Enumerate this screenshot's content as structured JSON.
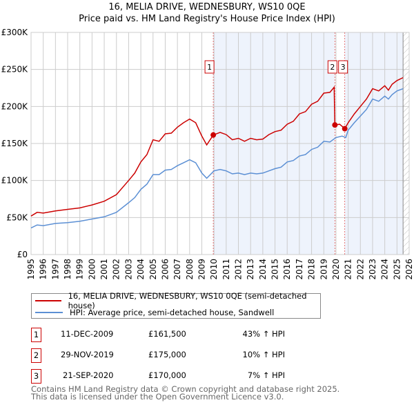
{
  "chart_data": {
    "type": "line",
    "title": "16, MELIA DRIVE, WEDNESBURY, WS10 0QE",
    "subtitle": "Price paid vs. HM Land Registry's House Price Index (HPI)",
    "xlabel": "",
    "ylabel": "",
    "xlim": [
      1995,
      2026
    ],
    "ylim": [
      0,
      300000
    ],
    "x_ticks": [
      "1995",
      "1996",
      "1997",
      "1998",
      "1999",
      "2000",
      "2001",
      "2002",
      "2003",
      "2004",
      "2005",
      "2006",
      "2007",
      "2008",
      "2009",
      "2010",
      "2011",
      "2012",
      "2013",
      "2014",
      "2015",
      "2016",
      "2017",
      "2018",
      "2019",
      "2020",
      "2021",
      "2022",
      "2023",
      "2024",
      "2025",
      "2026"
    ],
    "y_ticks": [
      {
        "v": 0,
        "label": "£0"
      },
      {
        "v": 50000,
        "label": "£50K"
      },
      {
        "v": 100000,
        "label": "£100K"
      },
      {
        "v": 150000,
        "label": "£150K"
      },
      {
        "v": 200000,
        "label": "£200K"
      },
      {
        "v": 250000,
        "label": "£250K"
      },
      {
        "v": 300000,
        "label": "£300K"
      }
    ],
    "grid": true,
    "series": [
      {
        "name": "16, MELIA DRIVE, WEDNESBURY, WS10 0QE (semi-detached house)",
        "color": "#cc0000",
        "x": [
          1995,
          1995.5,
          1996,
          1997,
          1998,
          1999,
          2000,
          2001,
          2002,
          2003,
          2003.5,
          2004,
          2004.5,
          2005,
          2005.5,
          2006,
          2006.5,
          2007,
          2007.5,
          2008,
          2008.5,
          2009,
          2009.4,
          2009.94,
          2010.5,
          2011,
          2011.5,
          2012,
          2012.5,
          2013,
          2013.5,
          2014,
          2014.5,
          2015,
          2015.5,
          2016,
          2016.5,
          2017,
          2017.5,
          2018,
          2018.5,
          2019,
          2019.5,
          2019.85,
          2019.91,
          2020.3,
          2020.72,
          2021,
          2021.5,
          2022,
          2022.5,
          2023,
          2023.5,
          2024,
          2024.3,
          2024.6,
          2025,
          2025.5
        ],
        "y": [
          52000,
          57000,
          56000,
          59000,
          61000,
          63000,
          67000,
          72000,
          81000,
          100000,
          110000,
          125000,
          135000,
          155000,
          153000,
          163000,
          164000,
          172000,
          178000,
          183000,
          178000,
          160000,
          148000,
          161500,
          165000,
          162000,
          155000,
          157000,
          153000,
          157000,
          155000,
          156000,
          162000,
          166000,
          168000,
          176000,
          180000,
          190000,
          193000,
          203000,
          207000,
          218000,
          219000,
          226000,
          175000,
          176000,
          170000,
          178000,
          190000,
          200000,
          210000,
          224000,
          221000,
          228000,
          222000,
          230000,
          235000,
          239000
        ]
      },
      {
        "name": "HPI: Average price, semi-detached house, Sandwell",
        "color": "#5b8fd4",
        "x": [
          1995,
          1995.5,
          1996,
          1997,
          1998,
          1999,
          2000,
          2001,
          2002,
          2003,
          2003.5,
          2004,
          2004.5,
          2005,
          2005.5,
          2006,
          2006.5,
          2007,
          2007.5,
          2008,
          2008.5,
          2009,
          2009.4,
          2010,
          2010.5,
          2011,
          2011.5,
          2012,
          2012.5,
          2013,
          2013.5,
          2014,
          2014.5,
          2015,
          2015.5,
          2016,
          2016.5,
          2017,
          2017.5,
          2018,
          2018.5,
          2019,
          2019.5,
          2020,
          2020.5,
          2020.8,
          2021,
          2021.5,
          2022,
          2022.5,
          2023,
          2023.5,
          2024,
          2024.3,
          2024.6,
          2025,
          2025.5
        ],
        "y": [
          36000,
          40000,
          39000,
          42000,
          43000,
          45000,
          48000,
          51000,
          57000,
          70000,
          77000,
          88000,
          95000,
          108000,
          108000,
          114000,
          115000,
          120000,
          124000,
          128000,
          124000,
          110000,
          103000,
          113000,
          115000,
          113000,
          109000,
          110000,
          108000,
          110000,
          109000,
          110000,
          113000,
          116000,
          118000,
          125000,
          127000,
          133000,
          135000,
          142000,
          145000,
          153000,
          152000,
          158000,
          160000,
          158000,
          168000,
          178000,
          187000,
          196000,
          210000,
          207000,
          214000,
          210000,
          216000,
          221000,
          224000
        ]
      }
    ],
    "sales": [
      {
        "label": "1",
        "x": 2009.94,
        "y": 161500
      },
      {
        "label": "2",
        "x": 2019.91,
        "y": 175000
      },
      {
        "label": "3",
        "x": 2020.72,
        "y": 170000
      }
    ],
    "legend": "below"
  },
  "transactions": [
    {
      "num": "1",
      "date": "11-DEC-2009",
      "price": "£161,500",
      "hpi": "43% ↑ HPI"
    },
    {
      "num": "2",
      "date": "29-NOV-2019",
      "price": "£175,000",
      "hpi": "10% ↑ HPI"
    },
    {
      "num": "3",
      "date": "21-SEP-2020",
      "price": "£170,000",
      "hpi": "7% ↑ HPI"
    }
  ],
  "footer": {
    "line1": "Contains HM Land Registry data © Crown copyright and database right 2025.",
    "line2": "This data is licensed under the Open Government Licence v3.0."
  }
}
